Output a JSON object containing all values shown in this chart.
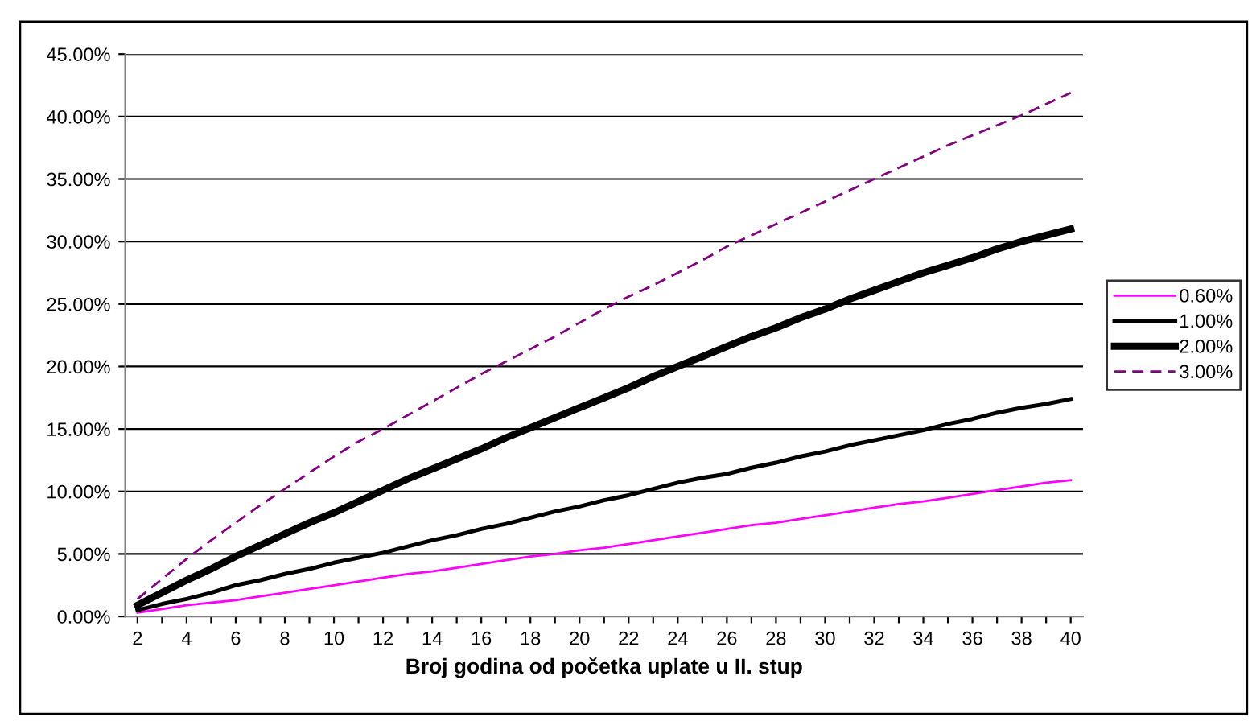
{
  "chart_data": {
    "type": "line",
    "xlabel": "Broj godina od početka uplate u II. stup",
    "categories": [
      "2",
      null,
      "4",
      null,
      "6",
      null,
      "8",
      null,
      "10",
      null,
      "12",
      null,
      "14",
      null,
      "16",
      null,
      "18",
      null,
      "20",
      null,
      "22",
      null,
      "24",
      null,
      "26",
      null,
      "28",
      null,
      "30",
      null,
      "32",
      null,
      "34",
      null,
      "36",
      null,
      "38",
      null,
      "40"
    ],
    "series": [
      {
        "name": "0.60%",
        "color": "#ff00ff",
        "line_style": "solid",
        "values": [
          0.3,
          0.6,
          0.9,
          1.1,
          1.3,
          1.6,
          1.9,
          2.2,
          2.5,
          2.8,
          3.1,
          3.4,
          3.6,
          3.9,
          4.2,
          4.5,
          4.8,
          5.0,
          5.3,
          5.5,
          5.8,
          6.1,
          6.4,
          6.7,
          7.0,
          7.3,
          7.5,
          7.8,
          8.1,
          8.4,
          8.7,
          9.0,
          9.2,
          9.5,
          9.8,
          10.1,
          10.4,
          10.7,
          10.9
        ]
      },
      {
        "name": "1.00%",
        "color": "#000000",
        "line_style": "solid",
        "values": [
          0.5,
          1.0,
          1.4,
          1.9,
          2.5,
          2.9,
          3.4,
          3.8,
          4.3,
          4.7,
          5.1,
          5.6,
          6.1,
          6.5,
          7.0,
          7.4,
          7.9,
          8.4,
          8.8,
          9.3,
          9.7,
          10.2,
          10.7,
          11.1,
          11.4,
          11.9,
          12.3,
          12.8,
          13.2,
          13.7,
          14.1,
          14.5,
          14.9,
          15.4,
          15.8,
          16.3,
          16.7,
          17.0,
          17.4
        ]
      },
      {
        "name": "2.00%",
        "color": "#000000",
        "line_style": "solid",
        "values": [
          0.9,
          1.9,
          2.9,
          3.8,
          4.8,
          5.7,
          6.6,
          7.5,
          8.3,
          9.2,
          10.1,
          11.0,
          11.8,
          12.6,
          13.4,
          14.3,
          15.1,
          15.9,
          16.7,
          17.5,
          18.3,
          19.2,
          20.0,
          20.8,
          21.6,
          22.4,
          23.1,
          23.9,
          24.6,
          25.4,
          26.1,
          26.8,
          27.5,
          28.1,
          28.7,
          29.4,
          30.0,
          30.5,
          31.0
        ]
      },
      {
        "name": "3.00%",
        "color": "#800080",
        "line_style": "dashed",
        "values": [
          1.4,
          3.0,
          4.6,
          6.1,
          7.5,
          8.9,
          10.2,
          11.5,
          12.8,
          14.0,
          15.0,
          16.1,
          17.2,
          18.3,
          19.4,
          20.4,
          21.4,
          22.4,
          23.5,
          24.6,
          25.6,
          26.5,
          27.5,
          28.5,
          29.6,
          30.5,
          31.4,
          32.3,
          33.2,
          34.1,
          35.0,
          35.9,
          36.8,
          37.7,
          38.5,
          39.3,
          40.1,
          41.0,
          41.9
        ]
      }
    ],
    "ylim": [
      0,
      45
    ],
    "yticks": [
      {
        "value": 0,
        "label": "0.00%"
      },
      {
        "value": 5,
        "label": "5.00%"
      },
      {
        "value": 10,
        "label": "10.00%"
      },
      {
        "value": 15,
        "label": "15.00%"
      },
      {
        "value": 20,
        "label": "20.00%"
      },
      {
        "value": 25,
        "label": "25.00%"
      },
      {
        "value": 30,
        "label": "30.00%"
      },
      {
        "value": 35,
        "label": "35.00%"
      },
      {
        "value": 40,
        "label": "40.00%"
      },
      {
        "value": 45,
        "label": "45.00%"
      }
    ],
    "grid": "y",
    "legend": "right",
    "marker": "none"
  }
}
